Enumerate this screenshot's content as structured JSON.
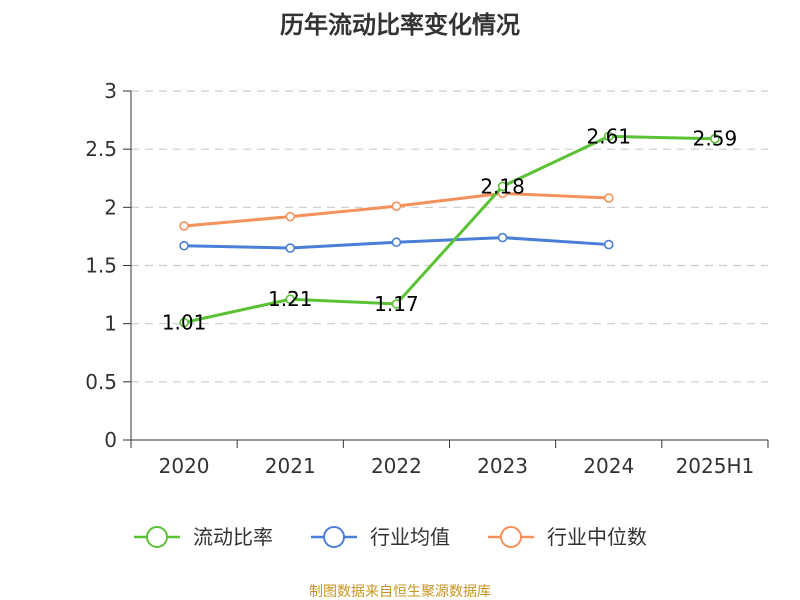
{
  "chart_data": {
    "type": "line",
    "title": "历年流动比率变化情况",
    "categories": [
      "2020",
      "2021",
      "2022",
      "2023",
      "2024",
      "2025H1"
    ],
    "ylim": [
      0,
      3
    ],
    "yticks": [
      "0",
      "0.5",
      "1",
      "1.5",
      "2",
      "2.5",
      "3"
    ],
    "ytick_values": [
      0,
      0.5,
      1,
      1.5,
      2,
      2.5,
      3
    ],
    "grid": "horizontal dashed",
    "legend_position": "bottom",
    "series": [
      {
        "name": "流动比率",
        "color": "#5bc236",
        "values": [
          1.01,
          1.21,
          1.17,
          2.18,
          2.61,
          2.59
        ],
        "labels": [
          "1.01",
          "1.21",
          "1.17",
          "2.18",
          "2.61",
          "2.59"
        ]
      },
      {
        "name": "行业均值",
        "color": "#4a7ed9",
        "values": [
          1.67,
          1.65,
          1.7,
          1.74,
          1.68,
          null
        ]
      },
      {
        "name": "行业中位数",
        "color": "#f5915a",
        "values": [
          1.84,
          1.92,
          2.01,
          2.12,
          2.08,
          null
        ]
      }
    ]
  },
  "footer": {
    "source": "制图数据来自恒生聚源数据库"
  }
}
